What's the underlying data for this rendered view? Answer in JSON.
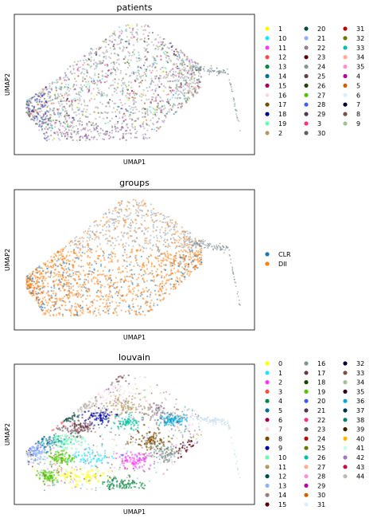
{
  "chart_data": [
    {
      "type": "scatter",
      "title": "patients",
      "xlabel": "UMAP1",
      "ylabel": "UMAP2",
      "grid": false,
      "legend_placement": "right",
      "legend_columns": 3,
      "series": [
        {
          "name": "1",
          "color": "#ffff00"
        },
        {
          "name": "10",
          "color": "#1ce6ff"
        },
        {
          "name": "11",
          "color": "#ff34ff"
        },
        {
          "name": "12",
          "color": "#ff4a46"
        },
        {
          "name": "13",
          "color": "#008941"
        },
        {
          "name": "14",
          "color": "#006fa6"
        },
        {
          "name": "15",
          "color": "#a30059"
        },
        {
          "name": "16",
          "color": "#ffdbe5"
        },
        {
          "name": "17",
          "color": "#7a4900"
        },
        {
          "name": "18",
          "color": "#0000a6"
        },
        {
          "name": "19",
          "color": "#63ffac"
        },
        {
          "name": "2",
          "color": "#b79762"
        },
        {
          "name": "20",
          "color": "#004d43"
        },
        {
          "name": "21",
          "color": "#8fb0ff"
        },
        {
          "name": "22",
          "color": "#997d87"
        },
        {
          "name": "23",
          "color": "#5a0007"
        },
        {
          "name": "24",
          "color": "#809693"
        },
        {
          "name": "25",
          "color": "#6a3a4c"
        },
        {
          "name": "26",
          "color": "#1b4400"
        },
        {
          "name": "27",
          "color": "#4fc601"
        },
        {
          "name": "28",
          "color": "#3b5dff"
        },
        {
          "name": "29",
          "color": "#4a3b53"
        },
        {
          "name": "3",
          "color": "#ff2f80"
        },
        {
          "name": "30",
          "color": "#61615a"
        },
        {
          "name": "31",
          "color": "#ba0900"
        },
        {
          "name": "32",
          "color": "#6b7900"
        },
        {
          "name": "33",
          "color": "#00c2a0"
        },
        {
          "name": "34",
          "color": "#ffaa92"
        },
        {
          "name": "35",
          "color": "#ff90c9"
        },
        {
          "name": "4",
          "color": "#b903aa"
        },
        {
          "name": "5",
          "color": "#d16100"
        },
        {
          "name": "6",
          "color": "#ddefff"
        },
        {
          "name": "7",
          "color": "#000035"
        },
        {
          "name": "8",
          "color": "#7b4f4b"
        },
        {
          "name": "9",
          "color": "#a1c299"
        }
      ]
    },
    {
      "type": "scatter",
      "title": "groups",
      "xlabel": "UMAP1",
      "ylabel": "UMAP2",
      "grid": false,
      "legend_placement": "right",
      "legend_columns": 1,
      "series": [
        {
          "name": "CLR",
          "color": "#1f77b4"
        },
        {
          "name": "DII",
          "color": "#ff7f0e"
        }
      ]
    },
    {
      "type": "scatter",
      "title": "louvain",
      "xlabel": "UMAP1",
      "ylabel": "UMAP2",
      "grid": false,
      "legend_placement": "right",
      "legend_columns": 3,
      "series": [
        {
          "name": "0",
          "color": "#ffff00"
        },
        {
          "name": "1",
          "color": "#1ce6ff"
        },
        {
          "name": "2",
          "color": "#ff34ff"
        },
        {
          "name": "3",
          "color": "#ff4a46"
        },
        {
          "name": "4",
          "color": "#008941"
        },
        {
          "name": "5",
          "color": "#006fa6"
        },
        {
          "name": "6",
          "color": "#a30059"
        },
        {
          "name": "7",
          "color": "#ffdbe5"
        },
        {
          "name": "8",
          "color": "#7a4900"
        },
        {
          "name": "9",
          "color": "#0000a6"
        },
        {
          "name": "10",
          "color": "#63ffac"
        },
        {
          "name": "11",
          "color": "#b79762"
        },
        {
          "name": "12",
          "color": "#004d43"
        },
        {
          "name": "13",
          "color": "#8fb0ff"
        },
        {
          "name": "14",
          "color": "#997d87"
        },
        {
          "name": "15",
          "color": "#5a0007"
        },
        {
          "name": "16",
          "color": "#809693"
        },
        {
          "name": "17",
          "color": "#6a3a4c"
        },
        {
          "name": "18",
          "color": "#1b4400"
        },
        {
          "name": "19",
          "color": "#4fc601"
        },
        {
          "name": "20",
          "color": "#3b5dff"
        },
        {
          "name": "21",
          "color": "#4a3b53"
        },
        {
          "name": "22",
          "color": "#ff2f80"
        },
        {
          "name": "23",
          "color": "#61615a"
        },
        {
          "name": "24",
          "color": "#ba0900"
        },
        {
          "name": "25",
          "color": "#6b7900"
        },
        {
          "name": "26",
          "color": "#00c2a0"
        },
        {
          "name": "27",
          "color": "#ffaa92"
        },
        {
          "name": "28",
          "color": "#ff90c9"
        },
        {
          "name": "29",
          "color": "#b903aa"
        },
        {
          "name": "30",
          "color": "#d16100"
        },
        {
          "name": "31",
          "color": "#ddefff"
        },
        {
          "name": "32",
          "color": "#000035"
        },
        {
          "name": "33",
          "color": "#7b4f4b"
        },
        {
          "name": "34",
          "color": "#a1c299"
        },
        {
          "name": "35",
          "color": "#300018"
        },
        {
          "name": "36",
          "color": "#0aa6d8"
        },
        {
          "name": "37",
          "color": "#013349"
        },
        {
          "name": "38",
          "color": "#00846f"
        },
        {
          "name": "39",
          "color": "#372101"
        },
        {
          "name": "40",
          "color": "#ffb500"
        },
        {
          "name": "41",
          "color": "#c2ffed"
        },
        {
          "name": "42",
          "color": "#a079bf"
        },
        {
          "name": "43",
          "color": "#cc0744"
        },
        {
          "name": "44",
          "color": "#c0b9b2"
        }
      ]
    }
  ]
}
